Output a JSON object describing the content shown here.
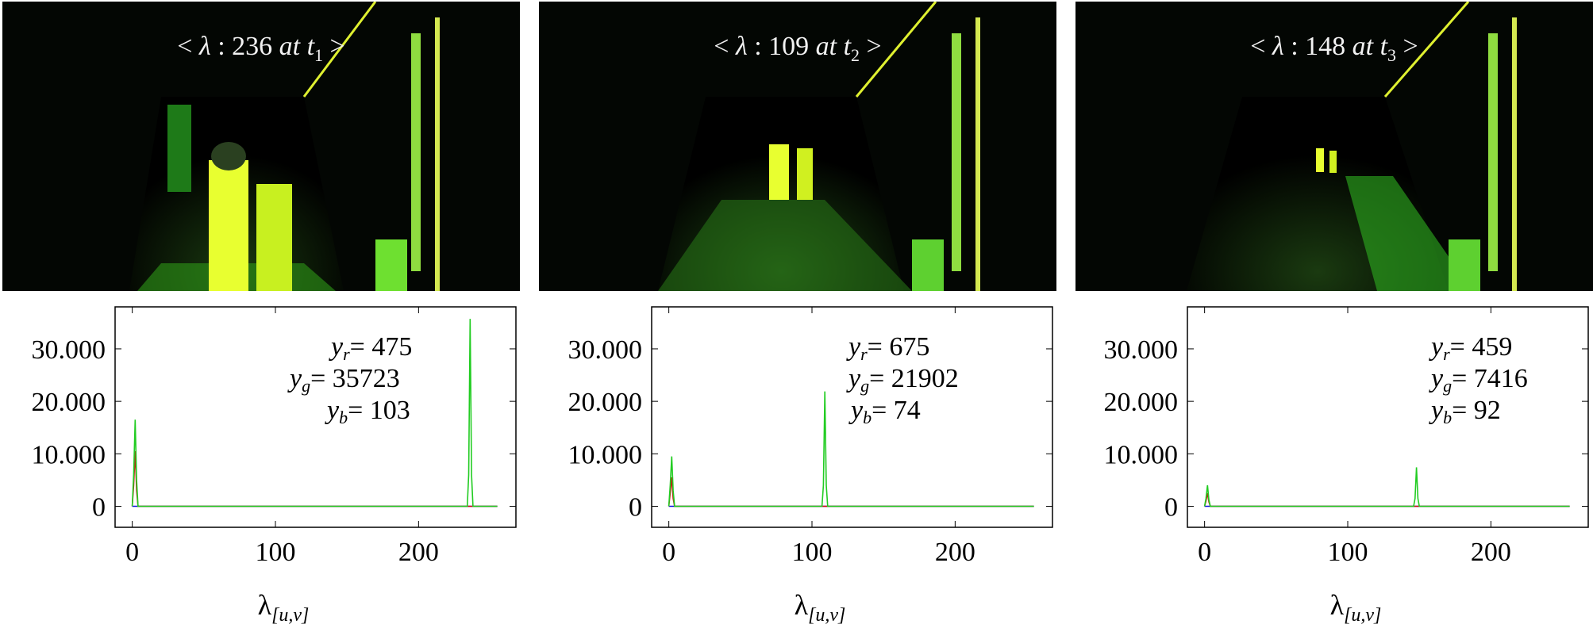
{
  "colors": {
    "red": "#d01010",
    "green": "#22cc22",
    "blue": "#1010e0",
    "floor_glow": "#3aef2a",
    "yellow_glow": "#e0f020"
  },
  "panels": [
    {
      "caption": {
        "lt": "<",
        "lambda": "λ",
        "sep": ":",
        "value": "236",
        "at": "at",
        "t": "t",
        "sub": "1",
        "gt": ">"
      },
      "legend": {
        "r_name": "y",
        "r_sub": "r",
        "r_value": "= 475",
        "g_name": "y",
        "g_sub": "g",
        "g_value": "= 35723",
        "b_name": "y",
        "b_sub": "b",
        "b_value": "= 103"
      },
      "xlabel": {
        "main": "λ",
        "sub": "[u,v]"
      }
    },
    {
      "caption": {
        "lt": "<",
        "lambda": "λ",
        "sep": ":",
        "value": "109",
        "at": "at",
        "t": "t",
        "sub": "2",
        "gt": ">"
      },
      "legend": {
        "r_name": "y",
        "r_sub": "r",
        "r_value": "= 675",
        "g_name": "y",
        "g_sub": "g",
        "g_value": "= 21902",
        "b_name": "y",
        "b_sub": "b",
        "b_value": "= 74"
      },
      "xlabel": {
        "main": "λ",
        "sub": "[u,v]"
      }
    },
    {
      "caption": {
        "lt": "<",
        "lambda": "λ",
        "sep": ":",
        "value": "148",
        "at": "at",
        "t": "t",
        "sub": "3",
        "gt": ">"
      },
      "legend": {
        "r_name": "y",
        "r_sub": "r",
        "r_value": "= 459",
        "g_name": "y",
        "g_sub": "g",
        "g_value": "= 7416",
        "b_name": "y",
        "b_sub": "b",
        "b_value": "= 92"
      },
      "xlabel": {
        "main": "λ",
        "sub": "[u,v]"
      }
    }
  ],
  "chart_data": [
    {
      "type": "line",
      "xlim": [
        -12,
        268
      ],
      "ylim": [
        -4000,
        38000
      ],
      "xticks": [
        0,
        100,
        200
      ],
      "xtick_labels": [
        "0",
        "100",
        "200"
      ],
      "yticks": [
        0,
        10000,
        20000,
        30000
      ],
      "ytick_labels": [
        "0",
        "10.000",
        "20.000",
        "30.000"
      ],
      "xlabel": "λ[u,v]",
      "grid": false,
      "series": [
        {
          "name": "y_r",
          "color": "#d01010",
          "x": [
            0,
            1,
            2,
            3,
            4,
            255
          ],
          "y": [
            0,
            4000,
            10500,
            3000,
            0,
            0
          ],
          "peak_x": 236,
          "peak_y": 475
        },
        {
          "name": "y_g",
          "color": "#22cc22",
          "x": [
            0,
            1,
            2,
            3,
            4,
            234,
            235,
            236,
            237,
            238,
            255
          ],
          "y": [
            0,
            6000,
            16500,
            5000,
            0,
            0,
            6000,
            35723,
            6000,
            0,
            0
          ]
        },
        {
          "name": "y_b",
          "color": "#1010e0",
          "x": [
            0,
            255
          ],
          "y": [
            0,
            0
          ],
          "peak_y": 103
        }
      ]
    },
    {
      "type": "line",
      "xlim": [
        -12,
        268
      ],
      "ylim": [
        -4000,
        38000
      ],
      "xticks": [
        0,
        100,
        200
      ],
      "xtick_labels": [
        "0",
        "100",
        "200"
      ],
      "yticks": [
        0,
        10000,
        20000,
        30000
      ],
      "ytick_labels": [
        "0",
        "10.000",
        "20.000",
        "30.000"
      ],
      "xlabel": "λ[u,v]",
      "grid": false,
      "series": [
        {
          "name": "y_r",
          "color": "#d01010",
          "x": [
            0,
            1,
            2,
            3,
            4,
            255
          ],
          "y": [
            0,
            2500,
            5500,
            1500,
            0,
            0
          ],
          "peak_x": 109,
          "peak_y": 675
        },
        {
          "name": "y_g",
          "color": "#22cc22",
          "x": [
            0,
            1,
            2,
            3,
            4,
            107,
            108,
            109,
            110,
            111,
            255
          ],
          "y": [
            0,
            4000,
            9500,
            3000,
            0,
            0,
            4000,
            21902,
            4000,
            0,
            0
          ]
        },
        {
          "name": "y_b",
          "color": "#1010e0",
          "x": [
            0,
            255
          ],
          "y": [
            0,
            0
          ],
          "peak_y": 74
        }
      ]
    },
    {
      "type": "line",
      "xlim": [
        -12,
        268
      ],
      "ylim": [
        -4000,
        38000
      ],
      "xticks": [
        0,
        100,
        200
      ],
      "xtick_labels": [
        "0",
        "100",
        "200"
      ],
      "yticks": [
        0,
        10000,
        20000,
        30000
      ],
      "ytick_labels": [
        "0",
        "10.000",
        "20.000",
        "30.000"
      ],
      "xlabel": "λ[u,v]",
      "grid": false,
      "series": [
        {
          "name": "y_r",
          "color": "#d01010",
          "x": [
            0,
            1,
            2,
            3,
            4,
            255
          ],
          "y": [
            0,
            1000,
            2500,
            800,
            0,
            0
          ],
          "peak_x": 148,
          "peak_y": 459
        },
        {
          "name": "y_g",
          "color": "#22cc22",
          "x": [
            0,
            1,
            2,
            3,
            4,
            146,
            147,
            148,
            149,
            150,
            255
          ],
          "y": [
            0,
            1500,
            4000,
            1200,
            0,
            0,
            1500,
            7416,
            1500,
            0,
            0
          ]
        },
        {
          "name": "y_b",
          "color": "#1010e0",
          "x": [
            0,
            255
          ],
          "y": [
            0,
            0
          ],
          "peak_y": 92
        }
      ]
    }
  ]
}
